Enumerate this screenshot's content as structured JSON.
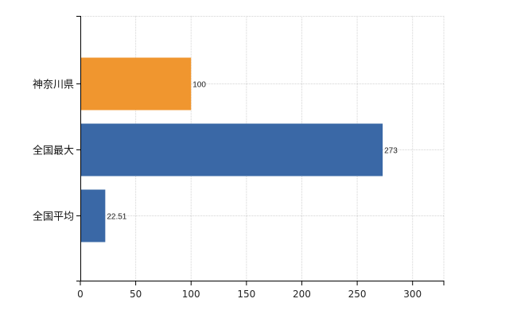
{
  "chart_data": {
    "type": "bar",
    "orientation": "horizontal",
    "title": "",
    "xlabel": "",
    "ylabel": "",
    "categories": [
      "神奈川県",
      "全国最大",
      "全国平均"
    ],
    "values": [
      100,
      273,
      22.51
    ],
    "value_labels": [
      "100",
      "273",
      "22.51"
    ],
    "bar_colors": [
      "#f0962f",
      "#3a68a6",
      "#3a68a6"
    ],
    "xlim": [
      0,
      330
    ],
    "xticks": [
      0,
      50,
      100,
      150,
      200,
      250,
      300
    ],
    "grid": true,
    "legend": "none"
  }
}
